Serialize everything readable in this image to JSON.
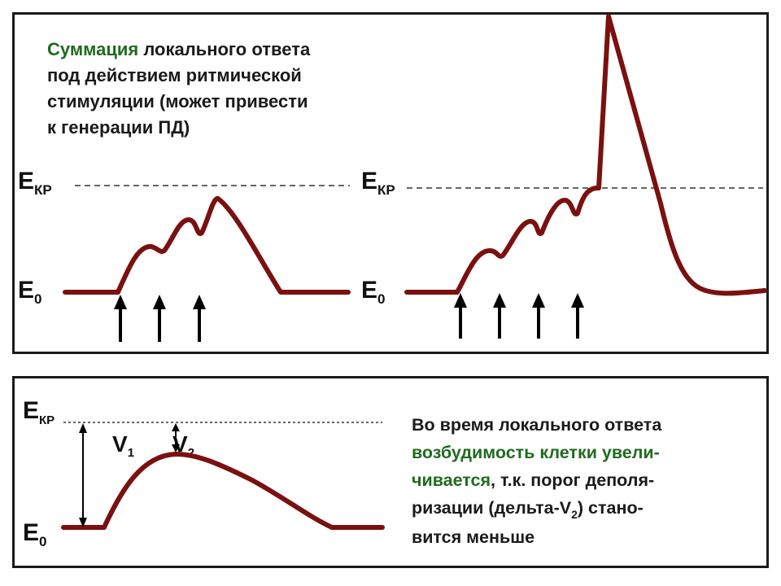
{
  "top": {
    "caption_lines": [
      {
        "green": "Суммация",
        "rest": " локального ответа"
      },
      {
        "green": "",
        "rest": "под действием ритмической"
      },
      {
        "green": "",
        "rest": "стимуляции (может привести"
      },
      {
        "green": "",
        "rest": "к генерации ПД)"
      }
    ],
    "left_graph": {
      "ekr_main": "E",
      "ekr_sub": "КР",
      "e0_main": "E",
      "e0_sub": "0"
    },
    "right_graph": {
      "ekr_main": "E",
      "ekr_sub": "КР",
      "e0_main": "E",
      "e0_sub": "0"
    }
  },
  "bottom": {
    "ekr_main": "E",
    "ekr_sub": "КР",
    "e0_main": "E",
    "e0_sub": "0",
    "v1_main": "V",
    "v1_sub": "1",
    "v2_main": "V",
    "v2_sub": "2",
    "caption_lines": [
      {
        "pre": "Во время локального ответа",
        "green": "",
        "post": ""
      },
      {
        "pre": "",
        "green": "возбудимость клетки увели-",
        "post": ""
      },
      {
        "pre": "",
        "green": "чивается",
        "post": ", т.к. порог деполя-"
      },
      {
        "pre": "ризации (дельта-V",
        "sub": "2",
        "post": ") стано-",
        "green": ""
      },
      {
        "pre": "вится меньше",
        "green": "",
        "post": ""
      }
    ]
  },
  "colors": {
    "curve": "#7a1010",
    "accent_green": "#1f6b1f",
    "frame": "#1a1a1a"
  }
}
